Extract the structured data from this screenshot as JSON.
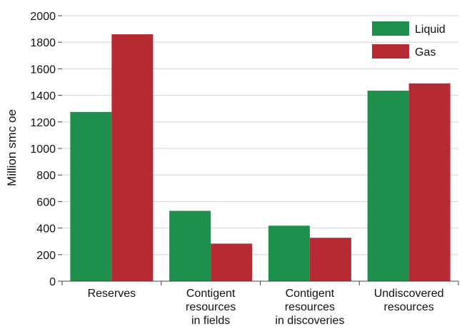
{
  "chart_data": {
    "type": "bar",
    "categories": [
      [
        "Reserves"
      ],
      [
        "Contigent",
        "resources",
        "in fields"
      ],
      [
        "Contigent",
        "resources",
        "in discoveries"
      ],
      [
        "Undiscovered",
        "resources"
      ]
    ],
    "series": [
      {
        "name": "Liquid",
        "color": "#1f8f4d",
        "values": [
          1275,
          530,
          418,
          1435
        ]
      },
      {
        "name": "Gas",
        "color": "#b52a33",
        "values": [
          1860,
          283,
          327,
          1490
        ]
      }
    ],
    "title": "",
    "xlabel": "",
    "ylabel": "Million smc oe",
    "ylim": [
      0,
      2000
    ],
    "yticks": [
      0,
      200,
      400,
      600,
      800,
      1000,
      1200,
      1400,
      1600,
      1800,
      2000
    ],
    "grid": true,
    "legend_position": "top-right"
  }
}
